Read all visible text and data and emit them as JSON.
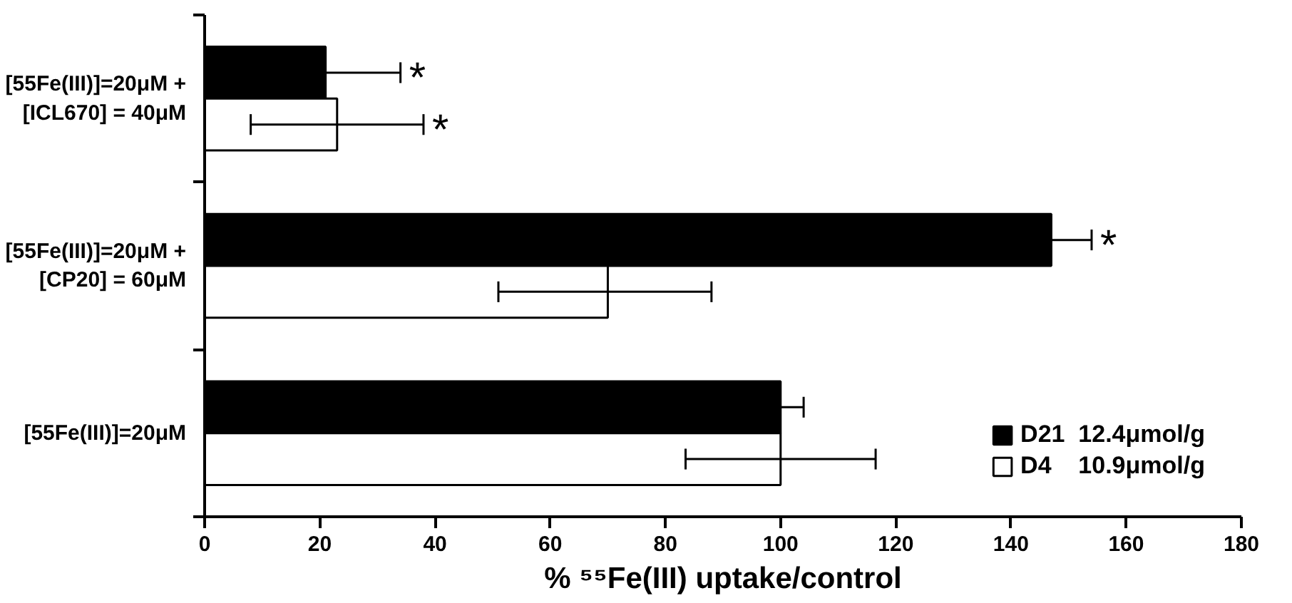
{
  "chart_data": {
    "type": "bar",
    "orientation": "horizontal",
    "xlabel": "% ⁵⁵Fe(III) uptake/control",
    "categories": [
      "[55Fe(III)]=20μM +\n[ICL670] = 40μM",
      "[55Fe(III)]=20μM +\n[CP20] = 60μM",
      "[55Fe(III)]=20μM"
    ],
    "series": [
      {
        "name": "D21  12.4μmol/g",
        "color": "#000000",
        "values": [
          21,
          147,
          100
        ],
        "value_labels": [
          "*",
          "*",
          null
        ],
        "errors": [
          [
            21,
            34
          ],
          [
            147,
            154
          ],
          [
            100,
            104
          ]
        ]
      },
      {
        "name": "D4    10.9μmol/g",
        "color": "#ffffff",
        "values": [
          23,
          70,
          100
        ],
        "value_labels": [
          "*",
          null,
          null
        ],
        "errors": [
          [
            8,
            38
          ],
          [
            51,
            88
          ],
          [
            83.5,
            116.5
          ]
        ]
      }
    ],
    "xlim": [
      0,
      180
    ],
    "xticks": [
      0,
      20,
      40,
      60,
      80,
      100,
      120,
      140,
      160,
      180
    ],
    "grid": false,
    "legend": "bottom right"
  }
}
